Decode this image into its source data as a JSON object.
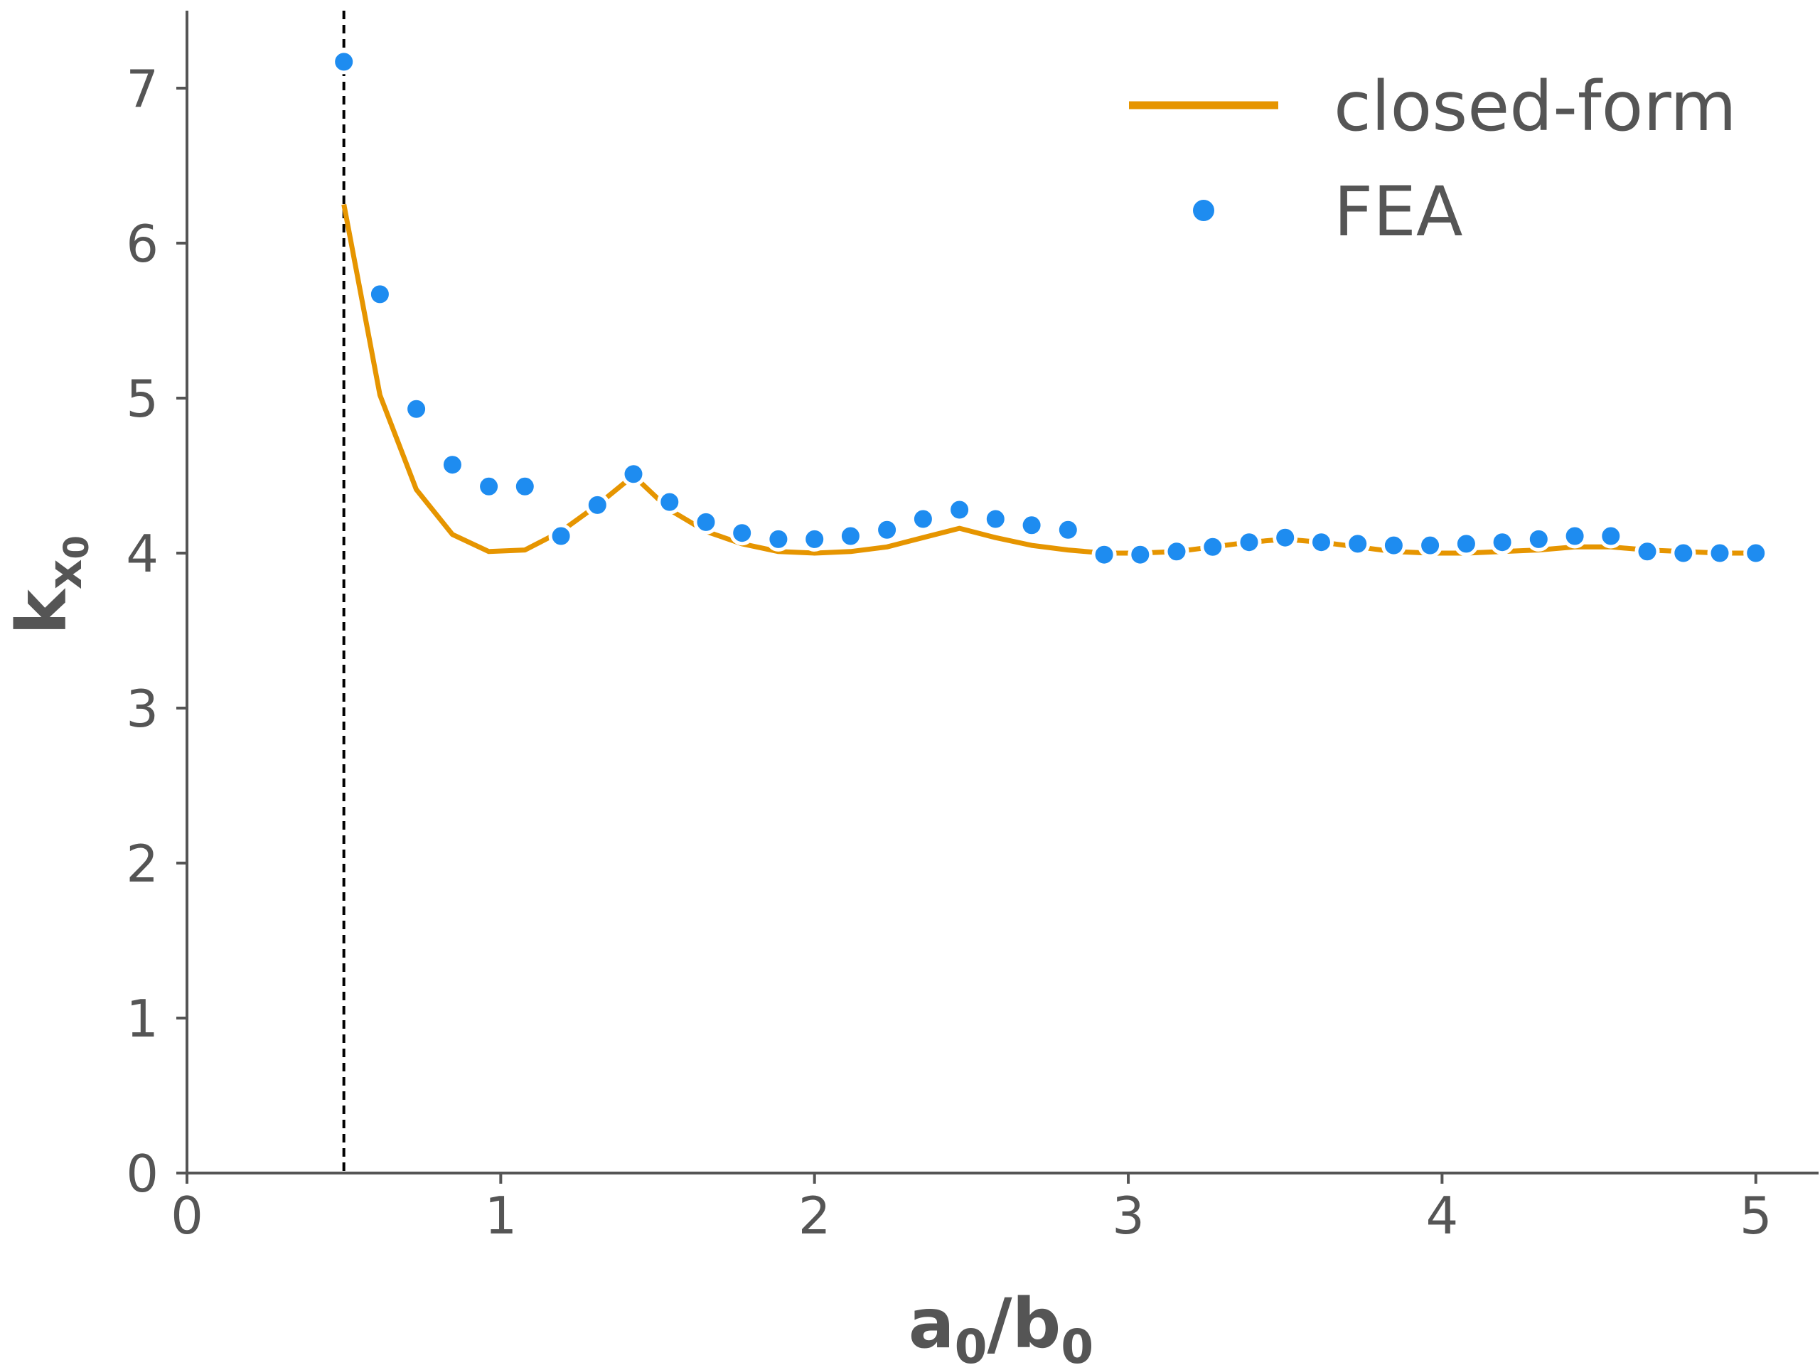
{
  "chart_data": {
    "type": "line",
    "xlabel": {
      "main": "a",
      "sub1": "0",
      "mid": "/b",
      "sub2": "0"
    },
    "ylabel": {
      "main": "k",
      "sub1": "x",
      "sub2": "0"
    },
    "xlim": [
      0,
      5.2
    ],
    "ylim": [
      0,
      7.5
    ],
    "xticks": [
      0,
      1,
      2,
      3,
      4,
      5
    ],
    "yticks": [
      0,
      1,
      2,
      3,
      4,
      5,
      6,
      7
    ],
    "grid": false,
    "legend_position": "top-right",
    "vline": {
      "x": 0.5,
      "style": "dashed",
      "color": "#000000"
    },
    "series": [
      {
        "name": "closed-form",
        "kind": "line",
        "color": "#E69500",
        "x": [
          0.5,
          0.615,
          0.731,
          0.846,
          0.962,
          1.077,
          1.192,
          1.308,
          1.423,
          1.538,
          1.654,
          1.769,
          1.885,
          2.0,
          2.115,
          2.231,
          2.346,
          2.462,
          2.577,
          2.692,
          2.808,
          2.923,
          3.038,
          3.154,
          3.269,
          3.385,
          3.5,
          3.615,
          3.731,
          3.846,
          3.962,
          4.077,
          4.192,
          4.308,
          4.423,
          4.538,
          4.654,
          4.769,
          4.885,
          5.0
        ],
        "y": [
          6.25,
          5.02,
          4.41,
          4.12,
          4.01,
          4.02,
          4.14,
          4.31,
          4.5,
          4.28,
          4.14,
          4.06,
          4.01,
          4.0,
          4.01,
          4.04,
          4.1,
          4.16,
          4.1,
          4.05,
          4.02,
          4.0,
          4.0,
          4.01,
          4.04,
          4.07,
          4.09,
          4.07,
          4.04,
          4.01,
          4.0,
          4.0,
          4.01,
          4.02,
          4.04,
          4.04,
          4.02,
          4.01,
          4.0,
          4.0
        ]
      },
      {
        "name": "FEA",
        "kind": "scatter",
        "color": "#1E8CF0",
        "x": [
          0.5,
          0.615,
          0.731,
          0.846,
          0.962,
          1.077,
          1.192,
          1.308,
          1.423,
          1.538,
          1.654,
          1.769,
          1.885,
          2.0,
          2.115,
          2.231,
          2.346,
          2.462,
          2.577,
          2.692,
          2.808,
          2.923,
          3.038,
          3.154,
          3.269,
          3.385,
          3.5,
          3.615,
          3.731,
          3.846,
          3.962,
          4.077,
          4.192,
          4.308,
          4.423,
          4.538,
          4.654,
          4.769,
          4.885,
          5.0
        ],
        "y": [
          7.17,
          5.67,
          4.93,
          4.57,
          4.43,
          4.43,
          4.11,
          4.31,
          4.51,
          4.33,
          4.2,
          4.13,
          4.09,
          4.09,
          4.11,
          4.15,
          4.22,
          4.28,
          4.22,
          4.18,
          4.15,
          3.99,
          3.99,
          4.01,
          4.04,
          4.07,
          4.1,
          4.07,
          4.06,
          4.05,
          4.05,
          4.06,
          4.07,
          4.09,
          4.11,
          4.11,
          4.01,
          4.0,
          4.0,
          4.0
        ]
      }
    ]
  }
}
